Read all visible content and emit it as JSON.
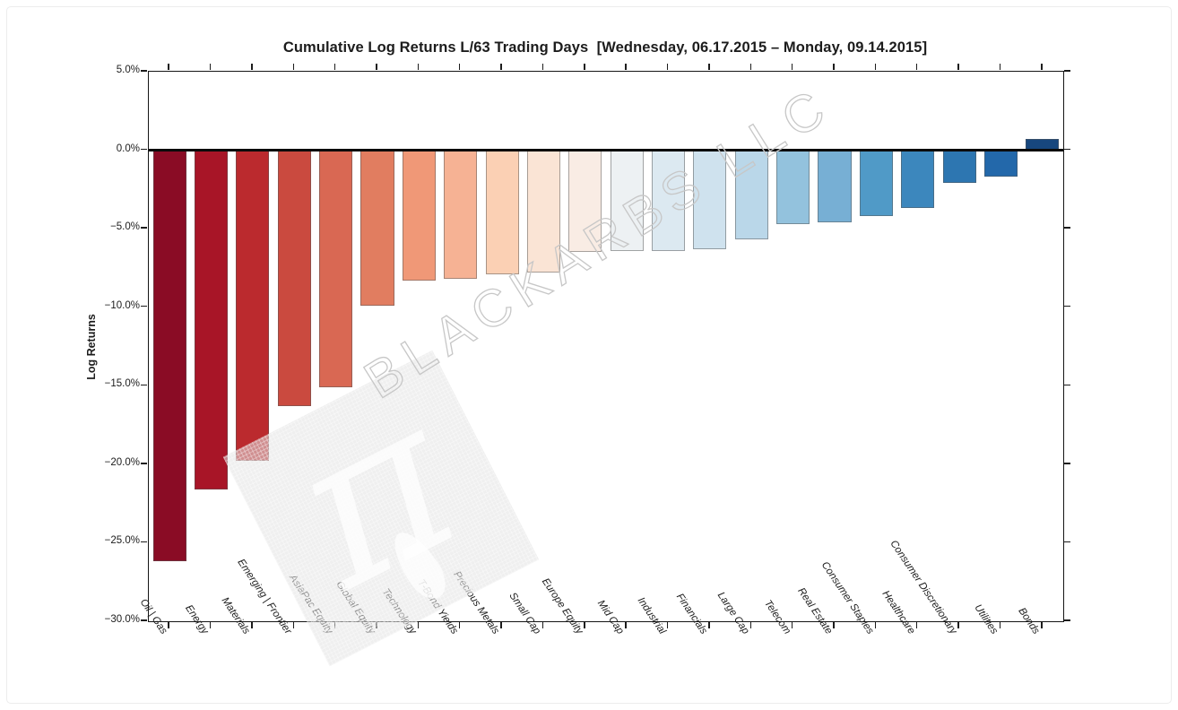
{
  "watermark": {
    "text": "BLACKARBS LLC",
    "logo": "π"
  },
  "chart_data": {
    "type": "bar",
    "title": "Cumulative Log Returns L/63 Trading Days  [Wednesday, 06.17.2015 – Monday, 09.14.2015]",
    "ylabel": "Log Returns",
    "xlabel": "",
    "ylim": [
      -30,
      5
    ],
    "ytick_step": 5,
    "ytick_labels": [
      "5.0%",
      "0.0%",
      "−5.0%",
      "−10.0%",
      "−15.0%",
      "−20.0%",
      "−25.0%",
      "−30.0%"
    ],
    "grid": false,
    "legend_position": "none",
    "zero_line": true,
    "categories": [
      "Oil | Gas",
      "Energy",
      "Materials",
      "Emerging | Frontier",
      "AsiaPac Equity",
      "Global Equity",
      "Technology",
      "T-Bond Yields",
      "Precious Metals",
      "Small Cap",
      "Europe Equity",
      "Mid Cap",
      "Industrial",
      "Financials",
      "Large Cap",
      "Telecom",
      "Real Estate",
      "Consumer Staples",
      "Healthcare",
      "Consumer Discretionary",
      "Utilities",
      "Bonds"
    ],
    "values": [
      -26.2,
      -21.6,
      -19.8,
      -16.3,
      -15.1,
      -9.9,
      -8.3,
      -8.2,
      -7.9,
      -7.8,
      -6.5,
      -6.4,
      -6.4,
      -6.3,
      -5.7,
      -4.7,
      -4.6,
      -4.2,
      -3.7,
      -2.1,
      -1.7,
      0.7
    ],
    "colors": [
      "#8a0c25",
      "#a81527",
      "#bb2a2e",
      "#ca4a3f",
      "#d96853",
      "#e17d60",
      "#f09877",
      "#f6b294",
      "#fbd0b4",
      "#fae4d5",
      "#f9ece4",
      "#edf1f3",
      "#dce9f1",
      "#cfe2ee",
      "#bad7e9",
      "#93c2dd",
      "#77afd4",
      "#509ac7",
      "#3c87bd",
      "#2d76b1",
      "#2368aa",
      "#17477e"
    ]
  }
}
